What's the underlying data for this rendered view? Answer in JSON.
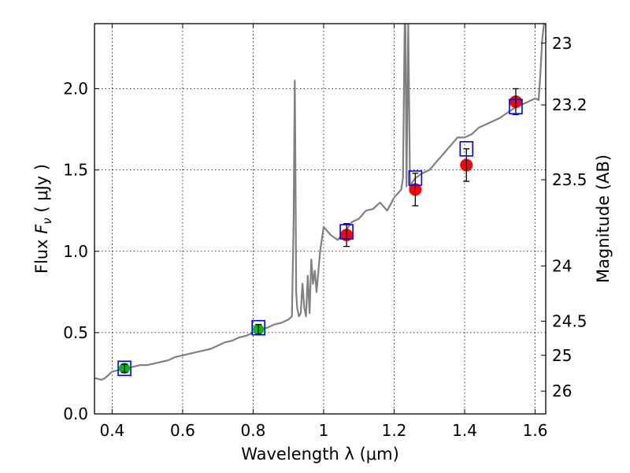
{
  "chart_data": {
    "type": "scatter",
    "xlabel": "Wavelength  λ (μm)",
    "ylabel": "Flux  F_ν  ( μJy )",
    "y2label": "Magnitude (AB)",
    "xlim": [
      0.35,
      1.63
    ],
    "ylim": [
      0.0,
      2.4
    ],
    "x_ticks": [
      "0.4",
      "0.6",
      "0.8",
      "1",
      "1.2",
      "1.4",
      "1.6"
    ],
    "x_tick_values": [
      0.4,
      0.6,
      0.8,
      1.0,
      1.2,
      1.4,
      1.6
    ],
    "y_ticks": [
      "0.0",
      "0.5",
      "1.0",
      "1.5",
      "2.0"
    ],
    "y_tick_values": [
      0.0,
      0.5,
      1.0,
      1.5,
      2.0
    ],
    "y2_ticks": [
      {
        "label": "23",
        "flux": 2.28
      },
      {
        "label": "23.2",
        "flux": 1.9
      },
      {
        "label": "23.5",
        "flux": 1.44
      },
      {
        "label": "24",
        "flux": 0.91
      },
      {
        "label": "24.5",
        "flux": 0.57
      },
      {
        "label": "25",
        "flux": 0.36
      },
      {
        "label": "26",
        "flux": 0.14
      }
    ],
    "grid": true,
    "colors": {
      "sed": "#808080",
      "observed": "#ff0000",
      "optical": "#00bb00",
      "model_box": "#0000ff",
      "errorbar": "#000000"
    },
    "series": [
      {
        "kind": "sed-line",
        "x": [
          0.35,
          0.37,
          0.38,
          0.39,
          0.4,
          0.42,
          0.44,
          0.46,
          0.48,
          0.5,
          0.52,
          0.54,
          0.56,
          0.58,
          0.6,
          0.62,
          0.64,
          0.66,
          0.68,
          0.7,
          0.72,
          0.74,
          0.76,
          0.78,
          0.8,
          0.82,
          0.84,
          0.86,
          0.88,
          0.9,
          0.91,
          0.915,
          0.918,
          0.92,
          0.922,
          0.925,
          0.93,
          0.935,
          0.94,
          0.945,
          0.95,
          0.955,
          0.96,
          0.965,
          0.97,
          0.975,
          0.98,
          0.99,
          1.0,
          1.02,
          1.04,
          1.06,
          1.08,
          1.1,
          1.12,
          1.14,
          1.16,
          1.18,
          1.2,
          1.22,
          1.225,
          1.23,
          1.232,
          1.235,
          1.24,
          1.245,
          1.25,
          1.26,
          1.28,
          1.3,
          1.32,
          1.34,
          1.36,
          1.38,
          1.4,
          1.42,
          1.44,
          1.46,
          1.48,
          1.5,
          1.52,
          1.54,
          1.56,
          1.58,
          1.6,
          1.61,
          1.615,
          1.62,
          1.625,
          1.63
        ],
        "y": [
          0.22,
          0.21,
          0.22,
          0.24,
          0.26,
          0.27,
          0.28,
          0.29,
          0.3,
          0.3,
          0.31,
          0.32,
          0.33,
          0.35,
          0.36,
          0.37,
          0.38,
          0.39,
          0.4,
          0.42,
          0.44,
          0.45,
          0.47,
          0.48,
          0.5,
          0.52,
          0.53,
          0.55,
          0.56,
          0.58,
          0.6,
          1.2,
          2.05,
          1.5,
          0.75,
          0.65,
          0.6,
          0.62,
          0.8,
          0.65,
          0.6,
          0.85,
          0.62,
          0.95,
          0.8,
          0.88,
          0.75,
          1.0,
          1.15,
          1.1,
          1.07,
          1.12,
          1.18,
          1.2,
          1.25,
          1.26,
          1.3,
          1.25,
          1.33,
          1.38,
          1.45,
          2.4,
          2.4,
          1.4,
          2.4,
          1.38,
          1.42,
          1.45,
          1.48,
          1.5,
          1.55,
          1.6,
          1.65,
          1.7,
          1.7,
          1.72,
          1.76,
          1.78,
          1.8,
          1.82,
          1.85,
          1.88,
          1.9,
          1.92,
          1.94,
          1.93,
          2.1,
          2.3,
          2.4,
          2.4
        ]
      },
      {
        "kind": "observed-points",
        "x": [
          1.065,
          1.26,
          1.405,
          1.545
        ],
        "y": [
          1.1,
          1.38,
          1.53,
          1.92
        ],
        "yerr": [
          0.07,
          0.1,
          0.1,
          0.08
        ]
      },
      {
        "kind": "optical-points",
        "x": [
          0.435,
          0.815
        ],
        "y": [
          0.28,
          0.52
        ],
        "yerr": [
          0.025,
          0.03
        ]
      },
      {
        "kind": "model-boxes",
        "x": [
          0.435,
          0.815,
          1.065,
          1.26,
          1.405,
          1.545
        ],
        "y": [
          0.28,
          0.53,
          1.12,
          1.45,
          1.63,
          1.89
        ]
      }
    ]
  }
}
